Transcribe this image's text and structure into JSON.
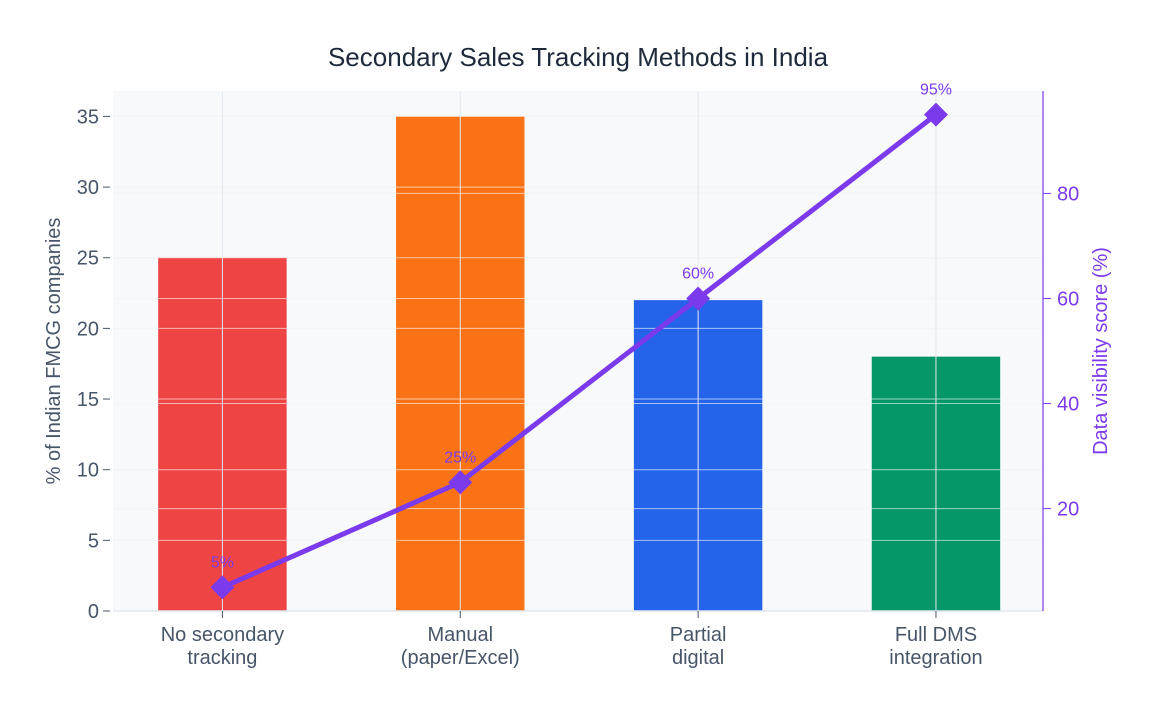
{
  "chart_data": {
    "type": "bar+line",
    "title": "Secondary Sales Tracking Methods in India",
    "categories": [
      [
        "No secondary",
        "tracking"
      ],
      [
        "Manual",
        "(paper/Excel)"
      ],
      [
        "Partial",
        "digital"
      ],
      [
        "Full DMS",
        "integration"
      ]
    ],
    "bars": {
      "values": [
        25,
        35,
        22,
        18
      ],
      "colors": [
        "#EF4444",
        "#F97316",
        "#2563EB",
        "#059669"
      ]
    },
    "line": {
      "values": [
        5,
        25,
        60,
        95
      ],
      "labels": [
        "5%",
        "25%",
        "60%",
        "95%"
      ],
      "color": "#7C3AED",
      "marker": "diamond"
    },
    "ylabel": "% of Indian FMCG companies",
    "y2label": "Data visibility score (%)",
    "ylim": [
      0,
      36.8
    ],
    "y2lim": [
      0.5,
      99.5
    ],
    "yticks": [
      0,
      5,
      10,
      15,
      20,
      25,
      30,
      35
    ],
    "y2ticks": [
      20,
      40,
      60,
      80
    ],
    "grid": true,
    "legend": "none"
  }
}
